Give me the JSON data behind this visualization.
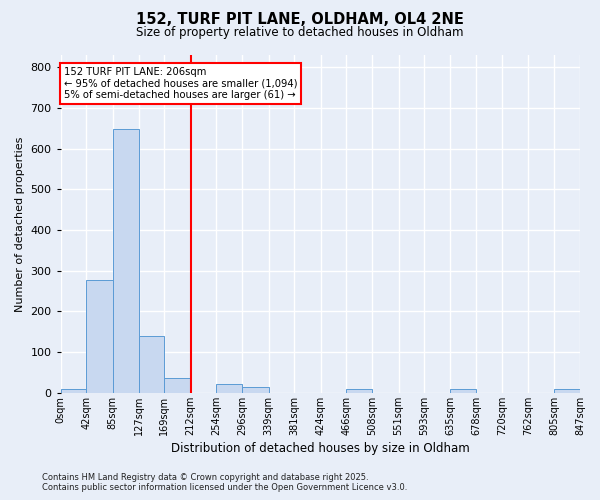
{
  "title_line1": "152, TURF PIT LANE, OLDHAM, OL4 2NE",
  "title_line2": "Size of property relative to detached houses in Oldham",
  "xlabel": "Distribution of detached houses by size in Oldham",
  "ylabel": "Number of detached properties",
  "bar_color": "#c8d8f0",
  "bar_edge_color": "#5b9bd5",
  "bin_labels": [
    "0sqm",
    "42sqm",
    "85sqm",
    "127sqm",
    "169sqm",
    "212sqm",
    "254sqm",
    "296sqm",
    "339sqm",
    "381sqm",
    "424sqm",
    "466sqm",
    "508sqm",
    "551sqm",
    "593sqm",
    "635sqm",
    "678sqm",
    "720sqm",
    "762sqm",
    "805sqm",
    "847sqm"
  ],
  "bin_edges": [
    0,
    42,
    85,
    127,
    169,
    212,
    254,
    296,
    339,
    381,
    424,
    466,
    508,
    551,
    593,
    635,
    678,
    720,
    762,
    805,
    847
  ],
  "bar_heights": [
    10,
    278,
    648,
    140,
    37,
    0,
    22,
    14,
    0,
    0,
    0,
    10,
    0,
    0,
    0,
    10,
    0,
    0,
    0,
    10
  ],
  "ylim": [
    0,
    830
  ],
  "yticks": [
    0,
    100,
    200,
    300,
    400,
    500,
    600,
    700,
    800
  ],
  "vline_x": 212,
  "annotation_text_line1": "152 TURF PIT LANE: 206sqm",
  "annotation_text_line2": "← 95% of detached houses are smaller (1,094)",
  "annotation_text_line3": "5% of semi-detached houses are larger (61) →",
  "footer_line1": "Contains HM Land Registry data © Crown copyright and database right 2025.",
  "footer_line2": "Contains public sector information licensed under the Open Government Licence v3.0.",
  "background_color": "#e8eef8",
  "plot_bg_color": "#e8eef8",
  "grid_color": "#ffffff"
}
